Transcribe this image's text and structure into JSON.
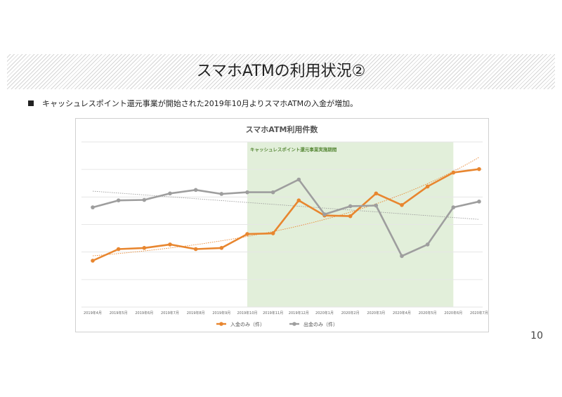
{
  "slide": {
    "title": "スマホATMの利用状況②",
    "bullet": "キャッシュレスポイント還元事業が開始された2019年10月よりスマホATMの入金が増加。",
    "page_number": "10"
  },
  "chart_data": {
    "type": "line",
    "title": "スマホATM利用件数",
    "categories": [
      "2019年4月",
      "2019年5月",
      "2019年6月",
      "2019年7月",
      "2019年8月",
      "2019年9月",
      "2019年10月",
      "2019年11月",
      "2019年12月",
      "2020年1月",
      "2020年2月",
      "2020年3月",
      "2020年4月",
      "2020年5月",
      "2020年6月",
      "2020年7月"
    ],
    "series": [
      {
        "name": "入金のみ（件）",
        "color": "#e8862f",
        "values": [
          0.5,
          1.0,
          1.05,
          1.2,
          1.0,
          1.05,
          1.65,
          1.68,
          3.1,
          2.45,
          2.42,
          3.4,
          2.9,
          3.7,
          4.3,
          4.45
        ]
      },
      {
        "name": "出金のみ（件）",
        "color": "#9e9e9e",
        "values": [
          2.8,
          3.1,
          3.12,
          3.4,
          3.55,
          3.38,
          3.45,
          3.45,
          4.0,
          2.5,
          2.85,
          2.88,
          0.7,
          1.2,
          2.8,
          3.05
        ]
      }
    ],
    "trendlines": true,
    "highlight": {
      "label": "キャッシュレスポイント還元事業実施期間",
      "from": "2019年10月",
      "to": "2020年6月",
      "color": "#e2efda"
    },
    "ylim": [
      -1.5,
      5.5
    ],
    "grid": true,
    "ytick_labels": false,
    "legend": "bottom"
  }
}
